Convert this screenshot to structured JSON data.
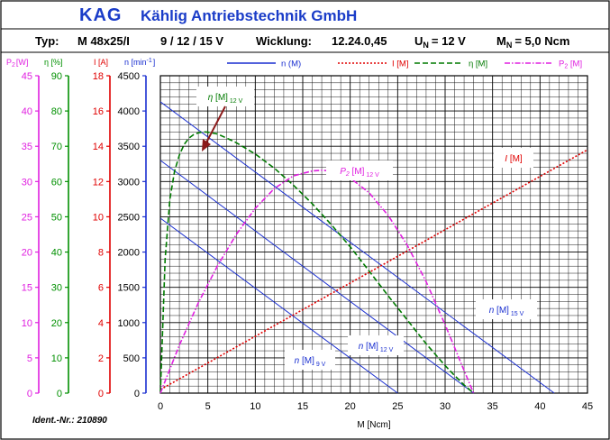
{
  "header": {
    "brand": "KAG",
    "company": "Kählig Antriebstechnik GmbH",
    "type_label": "Typ:",
    "model": "M 48x25/I",
    "voltages": "9 / 12 / 15 V",
    "winding_label": "Wicklung:",
    "winding": "12.24.0,45",
    "un_label": "U",
    "un_sub": "N",
    "un_value": "= 12 V",
    "mn_label": "M",
    "mn_sub": "N",
    "mn_value": "= 5,0 Ncm"
  },
  "footer": {
    "ident": "Ident.-Nr.: 210890"
  },
  "colors": {
    "brand": "#1a3cc8",
    "speed": "#1a2fd0",
    "current": "#e00000",
    "efficiency": "#007a00",
    "power": "#e020e0",
    "axis_power": "#e020e0",
    "axis_eff": "#009000",
    "axis_current": "#e00000",
    "axis_speed": "#1a2fd0"
  },
  "chart_data": {
    "type": "line",
    "xlabel": "M [Ncm]",
    "xlim": [
      0,
      45
    ],
    "xticks": [
      0,
      5,
      10,
      15,
      20,
      25,
      30,
      35,
      40,
      45
    ],
    "axes": [
      {
        "key": "power",
        "label": "P",
        "sub": "2",
        "unit": "[W]",
        "min": 0,
        "max": 45,
        "ticks": [
          0,
          5,
          10,
          15,
          20,
          25,
          30,
          35,
          40,
          45
        ]
      },
      {
        "key": "eff",
        "label": "η [%]",
        "sub": "",
        "unit": "",
        "min": 0,
        "max": 90,
        "ticks": [
          0,
          10,
          20,
          30,
          40,
          50,
          60,
          70,
          80,
          90
        ]
      },
      {
        "key": "current",
        "label": "I [A]",
        "sub": "",
        "unit": "",
        "min": 0,
        "max": 18,
        "ticks": [
          0,
          2,
          4,
          6,
          8,
          10,
          12,
          14,
          16,
          18
        ]
      },
      {
        "key": "speed",
        "label": "n [min",
        "sub": "-1",
        "unit": "]",
        "min": 0,
        "max": 4500,
        "ticks": [
          0,
          500,
          1000,
          1500,
          2000,
          2500,
          3000,
          3500,
          4000,
          4500
        ]
      }
    ],
    "legend": [
      {
        "key": "speed",
        "label": "n (M)",
        "style": "solid"
      },
      {
        "key": "current",
        "label": "I [M]",
        "style": "dotted"
      },
      {
        "key": "efficiency",
        "label": "η [M]",
        "style": "dashed"
      },
      {
        "key": "power",
        "label": "P",
        "sub": "2",
        "suffix": " [M]",
        "style": "dashdot"
      }
    ],
    "series": [
      {
        "name": "n [M] 15 V",
        "axis": "speed",
        "color_key": "speed",
        "style": "solid",
        "x": [
          0,
          41.5
        ],
        "y": [
          4130,
          0
        ]
      },
      {
        "name": "n [M] 12 V",
        "axis": "speed",
        "color_key": "speed",
        "style": "solid",
        "x": [
          0,
          33
        ],
        "y": [
          3300,
          0
        ]
      },
      {
        "name": "n [M] 9 V",
        "axis": "speed",
        "color_key": "speed",
        "style": "solid",
        "x": [
          0,
          25
        ],
        "y": [
          2480,
          0
        ]
      },
      {
        "name": "I [M]",
        "axis": "current",
        "color_key": "current",
        "style": "dotted",
        "x": [
          0,
          45
        ],
        "y": [
          0.2,
          13.8
        ]
      },
      {
        "name": "η [M] 12 V",
        "axis": "eff",
        "color_key": "efficiency",
        "style": "dashed",
        "x": [
          0,
          0.5,
          1,
          1.5,
          2,
          2.5,
          3,
          3.5,
          4,
          4.5,
          5,
          6,
          7,
          8,
          10,
          12,
          14,
          16,
          18,
          20,
          22,
          24,
          26,
          28,
          30,
          31,
          32,
          33
        ],
        "y": [
          0,
          38,
          55,
          63,
          67.5,
          70.5,
          72.3,
          73.3,
          73.8,
          74.1,
          74.0,
          73.5,
          72.3,
          71.0,
          67.8,
          63.8,
          59.0,
          53.7,
          47.8,
          41.5,
          34.6,
          27.6,
          20.8,
          14.0,
          7.8,
          5.0,
          2.3,
          0
        ]
      },
      {
        "name": "P2 [M] 12 V",
        "axis": "power",
        "color_key": "power",
        "style": "dashdot",
        "x": [
          0,
          2,
          4,
          6,
          8,
          10,
          12,
          14,
          16,
          17,
          18,
          20,
          22,
          24,
          26,
          28,
          30,
          32,
          33
        ],
        "y": [
          0,
          6.8,
          12.8,
          18.0,
          22.5,
          26.2,
          29.0,
          30.8,
          31.5,
          31.6,
          31.5,
          30.5,
          28.4,
          25.2,
          21.0,
          15.8,
          9.7,
          3.2,
          0
        ]
      }
    ],
    "annotations": [
      {
        "label": "η",
        "bracket": " [M]",
        "sub": "12 V",
        "color_key": "efficiency"
      },
      {
        "label": "P",
        "label_sub": "2",
        "bracket": " [M]",
        "sub": "12 V",
        "color_key": "power"
      },
      {
        "label": "I",
        "bracket": " [M]",
        "sub": "",
        "color_key": "current"
      },
      {
        "label": "n",
        "bracket": " [M]",
        "sub": "15 V",
        "color_key": "speed"
      },
      {
        "label": "n",
        "bracket": " [M]",
        "sub": "12 V",
        "color_key": "speed"
      },
      {
        "label": "n",
        "bracket": " [M]",
        "sub": "9 V",
        "color_key": "speed"
      }
    ]
  }
}
